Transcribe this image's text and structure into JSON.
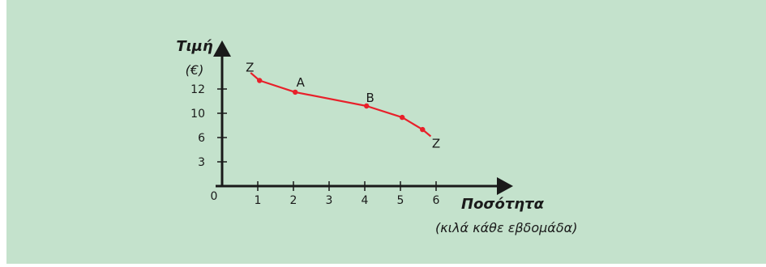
{
  "colors": {
    "background": "#c4e2cc",
    "curve": "#e8202a",
    "axis": "#1a1a1a"
  },
  "chart_data": {
    "type": "line",
    "title": "",
    "ylabel": "Τιμή",
    "yunit": "(€)",
    "xlabel": "Ποσότητα",
    "xunit": "(κιλά κάθε εβδομάδα)",
    "origin_label": "0",
    "x_ticks": [
      1,
      2,
      3,
      4,
      5,
      6
    ],
    "x_tick_labels": [
      "1",
      "2",
      "3",
      "4",
      "5",
      "6"
    ],
    "y_tick_labels": [
      "3",
      "6",
      "10",
      "12"
    ],
    "grid": false,
    "legend": "none",
    "series": [
      {
        "name": "",
        "x": [
          0.8,
          1.05,
          2.05,
          4.05,
          5.05,
          5.62,
          5.85
        ],
        "price_tick_level": [
          4.67,
          4.35,
          3.87,
          3.3,
          2.83,
          2.33,
          2.05
        ]
      }
    ],
    "markers_at_index": [
      1,
      2,
      3,
      4,
      5
    ],
    "point_labels": [
      {
        "text": "Z",
        "x": 0.78,
        "level": 4.72
      },
      {
        "text": "A",
        "x": 2.2,
        "level": 4.1
      },
      {
        "text": "B",
        "x": 4.15,
        "level": 3.47
      },
      {
        "text": "Z",
        "x": 6.0,
        "level": 1.58
      }
    ],
    "xlim": [
      0,
      7.5
    ],
    "ylim": [
      0,
      5.6
    ]
  }
}
